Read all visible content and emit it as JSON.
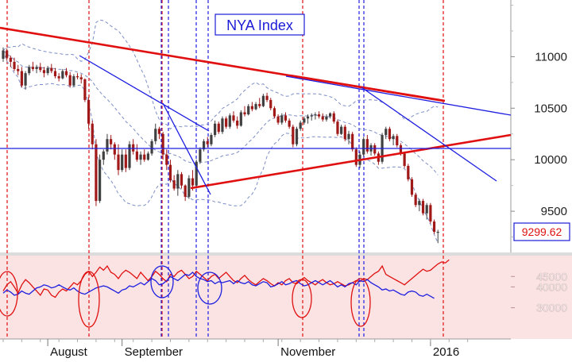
{
  "chart_data": {
    "type": "candlestick",
    "title": "NYA Index",
    "last_value_label": "9299.62",
    "price_axis": {
      "range": [
        9100,
        11550
      ],
      "ticks": [
        9500,
        10000,
        10500,
        11000
      ],
      "tick_labels": [
        "9500",
        "10000",
        "10500",
        "11000"
      ]
    },
    "indicator_axis": {
      "range": [
        15000,
        55000
      ],
      "tick_labels": [
        "45000",
        "40000",
        "30000"
      ],
      "tick_values": [
        45000,
        40000,
        30000
      ]
    },
    "date_axis": {
      "range": [
        0,
        127
      ],
      "labels": [
        "August",
        "September",
        "November",
        "2016"
      ],
      "label_positions": [
        12,
        32,
        74,
        115
      ]
    },
    "colors": {
      "candle_up": "#404040",
      "candle_down": "#a01818",
      "trendline_red": "#e01010",
      "trendline_blue": "#1e1ee0",
      "bollinger": "#7d8ec6",
      "indicator_bg": "#fbe3e3",
      "indicator_red": "#e01010",
      "indicator_blue": "#1e1ee0"
    },
    "candles": [
      [
        10980,
        11090,
        10950,
        11060
      ],
      [
        11060,
        11080,
        10960,
        10990
      ],
      [
        10990,
        11010,
        10900,
        10950
      ],
      [
        10950,
        10990,
        10860,
        10880
      ],
      [
        10880,
        10920,
        10820,
        10860
      ],
      [
        10860,
        10900,
        10700,
        10720
      ],
      [
        10720,
        10860,
        10680,
        10840
      ],
      [
        10840,
        10920,
        10820,
        10900
      ],
      [
        10900,
        10950,
        10860,
        10880
      ],
      [
        10880,
        10920,
        10840,
        10900
      ],
      [
        10900,
        10940,
        10850,
        10870
      ],
      [
        10870,
        10900,
        10800,
        10840
      ],
      [
        10840,
        10910,
        10820,
        10890
      ],
      [
        10890,
        10930,
        10840,
        10860
      ],
      [
        10860,
        10890,
        10790,
        10810
      ],
      [
        10810,
        10840,
        10760,
        10790
      ],
      [
        10790,
        10880,
        10780,
        10860
      ],
      [
        10860,
        10890,
        10800,
        10820
      ],
      [
        10820,
        10850,
        10700,
        10720
      ],
      [
        10720,
        10830,
        10710,
        10810
      ],
      [
        10810,
        10840,
        10780,
        10800
      ],
      [
        10800,
        10830,
        10740,
        10780
      ],
      [
        10780,
        10790,
        10560,
        10580
      ],
      [
        10580,
        10610,
        10300,
        10350
      ],
      [
        10350,
        10380,
        10100,
        10150
      ],
      [
        10150,
        10200,
        9550,
        9600
      ],
      [
        9600,
        10050,
        9580,
        10000
      ],
      [
        10000,
        10100,
        9950,
        10080
      ],
      [
        10080,
        10250,
        10050,
        10200
      ],
      [
        10200,
        10240,
        10100,
        10150
      ],
      [
        10150,
        10170,
        10000,
        10050
      ],
      [
        10050,
        10150,
        9850,
        9900
      ],
      [
        9900,
        10100,
        9880,
        10050
      ],
      [
        10050,
        10100,
        9880,
        9920
      ],
      [
        9920,
        10180,
        9900,
        10150
      ],
      [
        10150,
        10200,
        10050,
        10080
      ],
      [
        10080,
        10150,
        9980,
        10000
      ],
      [
        10000,
        10080,
        9950,
        10050
      ],
      [
        10050,
        10100,
        9980,
        10000
      ],
      [
        10000,
        10080,
        9990,
        10060
      ],
      [
        10060,
        10200,
        10040,
        10180
      ],
      [
        10180,
        10350,
        10150,
        10300
      ],
      [
        10300,
        10320,
        10200,
        10250
      ],
      [
        10250,
        10270,
        10000,
        10050
      ],
      [
        10050,
        10100,
        9900,
        9950
      ],
      [
        9950,
        10000,
        9780,
        9800
      ],
      [
        9800,
        9850,
        9700,
        9720
      ],
      [
        9720,
        9900,
        9650,
        9860
      ],
      [
        9860,
        9880,
        9720,
        9750
      ],
      [
        9750,
        9760,
        9600,
        9640
      ],
      [
        9640,
        9850,
        9620,
        9820
      ],
      [
        9820,
        9900,
        9700,
        9750
      ],
      [
        9750,
        10000,
        9720,
        9980
      ],
      [
        9980,
        10120,
        9960,
        10100
      ],
      [
        10100,
        10200,
        10080,
        10180
      ],
      [
        10180,
        10220,
        10120,
        10150
      ],
      [
        10150,
        10260,
        10130,
        10240
      ],
      [
        10240,
        10380,
        10220,
        10350
      ],
      [
        10350,
        10370,
        10250,
        10270
      ],
      [
        10270,
        10420,
        10250,
        10400
      ],
      [
        10400,
        10420,
        10300,
        10320
      ],
      [
        10320,
        10450,
        10300,
        10430
      ],
      [
        10430,
        10470,
        10360,
        10380
      ],
      [
        10380,
        10420,
        10300,
        10330
      ],
      [
        10330,
        10480,
        10320,
        10460
      ],
      [
        10460,
        10520,
        10420,
        10440
      ],
      [
        10440,
        10540,
        10430,
        10520
      ],
      [
        10520,
        10560,
        10470,
        10490
      ],
      [
        10490,
        10560,
        10480,
        10540
      ],
      [
        10540,
        10600,
        10500,
        10520
      ],
      [
        10520,
        10640,
        10510,
        10620
      ],
      [
        10620,
        10650,
        10560,
        10580
      ],
      [
        10580,
        10600,
        10480,
        10500
      ],
      [
        10500,
        10520,
        10400,
        10420
      ],
      [
        10420,
        10440,
        10340,
        10360
      ],
      [
        10360,
        10450,
        10340,
        10430
      ],
      [
        10430,
        10460,
        10360,
        10380
      ],
      [
        10380,
        10400,
        10300,
        10320
      ],
      [
        10320,
        10340,
        10120,
        10150
      ],
      [
        10150,
        10320,
        10130,
        10300
      ],
      [
        10300,
        10380,
        10280,
        10360
      ],
      [
        10360,
        10420,
        10340,
        10400
      ],
      [
        10400,
        10440,
        10350,
        10420
      ],
      [
        10420,
        10450,
        10380,
        10430
      ],
      [
        10430,
        10460,
        10390,
        10440
      ],
      [
        10440,
        10470,
        10400,
        10420
      ],
      [
        10420,
        10450,
        10370,
        10390
      ],
      [
        10390,
        10440,
        10370,
        10420
      ],
      [
        10420,
        10460,
        10400,
        10450
      ],
      [
        10450,
        10470,
        10350,
        10370
      ],
      [
        10370,
        10390,
        10230,
        10250
      ],
      [
        10250,
        10340,
        10240,
        10320
      ],
      [
        10320,
        10340,
        10180,
        10200
      ],
      [
        10200,
        10280,
        10150,
        10250
      ],
      [
        10250,
        10270,
        10080,
        10100
      ],
      [
        10100,
        10120,
        9930,
        9950
      ],
      [
        9950,
        10080,
        9920,
        10050
      ],
      [
        10050,
        10220,
        10030,
        10200
      ],
      [
        10200,
        10240,
        10060,
        10080
      ],
      [
        10080,
        10160,
        10040,
        10140
      ],
      [
        10140,
        10160,
        10040,
        10060
      ],
      [
        10060,
        10080,
        9950,
        9980
      ],
      [
        9980,
        10260,
        9960,
        10240
      ],
      [
        10240,
        10320,
        10200,
        10300
      ],
      [
        10300,
        10320,
        10180,
        10200
      ],
      [
        10200,
        10250,
        10140,
        10230
      ],
      [
        10230,
        10250,
        10120,
        10140
      ],
      [
        10140,
        10160,
        10040,
        10060
      ],
      [
        10060,
        10080,
        9920,
        9940
      ],
      [
        9940,
        9960,
        9790,
        9810
      ],
      [
        9810,
        9830,
        9640,
        9660
      ],
      [
        9660,
        9680,
        9540,
        9560
      ],
      [
        9560,
        9620,
        9500,
        9600
      ],
      [
        9600,
        9620,
        9460,
        9480
      ],
      [
        9480,
        9580,
        9420,
        9560
      ],
      [
        9560,
        9580,
        9380,
        9400
      ],
      [
        9400,
        9420,
        9280,
        9300
      ],
      [
        9300,
        9320,
        9190,
        9300
      ]
    ],
    "indicator_series": [
      {
        "values": [
          38000,
          41000,
          42500,
          40000,
          37000,
          41000,
          43500,
          42000,
          40000,
          38000,
          36000,
          39000,
          38500,
          36000,
          35000,
          37500,
          39000,
          38000,
          40000,
          42000,
          41000,
          43000,
          46000,
          47500,
          45000,
          47000,
          49500,
          48000,
          50000,
          47000,
          46000,
          44000,
          46500,
          48000,
          47000,
          45500,
          44000,
          47000,
          45000,
          43000,
          45000,
          47500,
          46000,
          44000,
          42500,
          46000,
          45000,
          47000,
          48000,
          46000,
          44000,
          45000,
          47500,
          46000,
          44500,
          43000,
          45000,
          46000,
          44000,
          45500,
          47000,
          45000,
          43000,
          42000,
          44000,
          45500,
          43500,
          42000,
          41000,
          42500,
          44000,
          43000,
          41500,
          40500,
          42000,
          41000,
          43000,
          44000,
          42000,
          41500,
          43000,
          44500,
          43000,
          42000,
          41000,
          42500,
          43500,
          42000,
          41000,
          41500,
          42500,
          41500,
          40500,
          41000,
          42000,
          43000,
          42500,
          44000,
          43500,
          45000,
          46500,
          47500,
          50000,
          46000,
          45000,
          44000,
          43000,
          42000,
          41000,
          42500,
          44000,
          45500,
          47000,
          48500,
          47500,
          48000,
          49500,
          51000,
          52000,
          51500,
          53000
        ]
      },
      {
        "values": [
          37000,
          38500,
          37500,
          36000,
          36500,
          38000,
          37000,
          36500,
          38000,
          39500,
          40000,
          41000,
          40500,
          39500,
          40000,
          41000,
          40000,
          39000,
          38500,
          39500,
          38000,
          37000,
          36500,
          37500,
          38500,
          39500,
          40000,
          40500,
          40000,
          39000,
          38000,
          37000,
          38500,
          39000,
          40500,
          40000,
          41000,
          42000,
          41000,
          42500,
          44000,
          43000,
          41000,
          41500,
          43000,
          45000,
          44000,
          43000,
          44500,
          46000,
          45500,
          47000,
          45000,
          44000,
          43500,
          42500,
          43000,
          41500,
          42500,
          42000,
          42500,
          43000,
          41500,
          43000,
          42000,
          41500,
          42500,
          41000,
          40500,
          41500,
          42500,
          42000,
          40000,
          40500,
          41500,
          42500,
          41000,
          41500,
          42500,
          43000,
          41500,
          40500,
          41000,
          42000,
          43000,
          42000,
          41000,
          42000,
          43000,
          41500,
          40000,
          41000,
          40000,
          41500,
          42000,
          41000,
          43000,
          42500,
          43500,
          42000,
          41000,
          40000,
          38500,
          39000,
          38000,
          38500,
          37500,
          36500,
          36000,
          37500,
          38000,
          37500,
          36000,
          35500,
          36500,
          35500,
          34500
        ]
      }
    ]
  }
}
